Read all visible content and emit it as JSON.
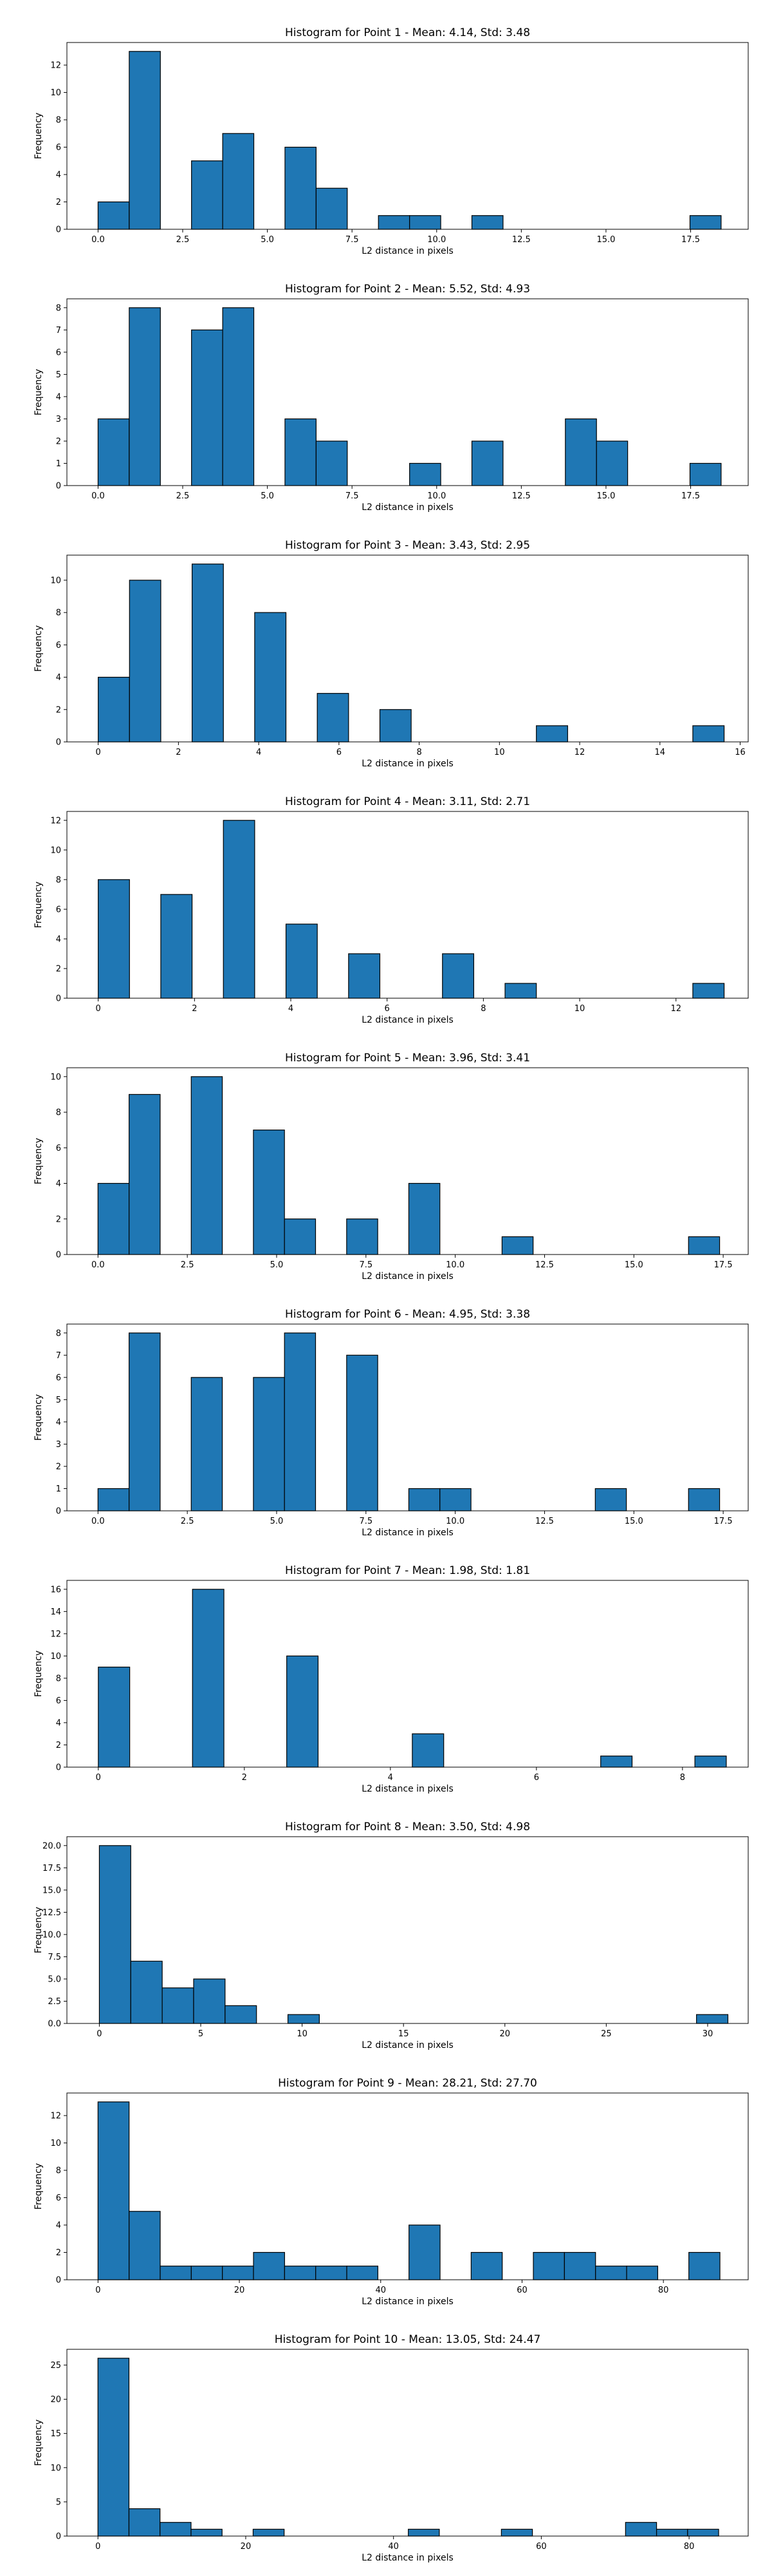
{
  "chart_data": [
    {
      "type": "bar",
      "title": "Histogram for Point 1 - Mean: 4.14, Std: 3.48",
      "xlabel": "L2 distance in pixels",
      "ylabel": "Frequency",
      "xlim": [
        -0.92,
        19.2
      ],
      "ylim": [
        0,
        13.65
      ],
      "xticks": [
        0.0,
        2.5,
        5.0,
        7.5,
        10.0,
        12.5,
        15.0,
        17.5
      ],
      "xtick_labels": [
        "0.0",
        "2.5",
        "5.0",
        "7.5",
        "10.0",
        "12.5",
        "15.0",
        "17.5"
      ],
      "yticks": [
        0,
        2,
        4,
        6,
        8,
        10,
        12
      ],
      "bin_edges": [
        0.0,
        0.92,
        1.84,
        2.76,
        3.68,
        4.6,
        5.52,
        6.44,
        7.36,
        8.28,
        9.2,
        10.12,
        11.04,
        11.96,
        12.88,
        13.8,
        14.72,
        15.64,
        16.56,
        17.48,
        18.4
      ],
      "counts": [
        2,
        13,
        0,
        5,
        7,
        0,
        6,
        3,
        0,
        1,
        1,
        0,
        1,
        0,
        0,
        0,
        0,
        0,
        0,
        1
      ]
    },
    {
      "type": "bar",
      "title": "Histogram for Point 2 - Mean: 5.52, Std: 4.93",
      "xlabel": "L2 distance in pixels",
      "ylabel": "Frequency",
      "xlim": [
        -0.92,
        19.2
      ],
      "ylim": [
        0,
        8.4
      ],
      "xticks": [
        0.0,
        2.5,
        5.0,
        7.5,
        10.0,
        12.5,
        15.0,
        17.5
      ],
      "xtick_labels": [
        "0.0",
        "2.5",
        "5.0",
        "7.5",
        "10.0",
        "12.5",
        "15.0",
        "17.5"
      ],
      "yticks": [
        0,
        1,
        2,
        3,
        4,
        5,
        6,
        7,
        8
      ],
      "bin_edges": [
        0.0,
        0.92,
        1.84,
        2.76,
        3.68,
        4.6,
        5.52,
        6.44,
        7.36,
        8.28,
        9.2,
        10.12,
        11.04,
        11.96,
        12.88,
        13.8,
        14.72,
        15.64,
        16.56,
        17.48,
        18.4
      ],
      "counts": [
        3,
        8,
        0,
        7,
        8,
        0,
        3,
        2,
        0,
        0,
        1,
        0,
        2,
        0,
        0,
        3,
        2,
        0,
        0,
        1
      ]
    },
    {
      "type": "bar",
      "title": "Histogram for Point 3 - Mean: 3.43, Std: 2.95",
      "xlabel": "L2 distance in pixels",
      "ylabel": "Frequency",
      "xlim": [
        -0.78,
        16.2
      ],
      "ylim": [
        0,
        11.55
      ],
      "xticks": [
        0,
        2,
        4,
        6,
        8,
        10,
        12,
        14,
        16
      ],
      "xtick_labels": [
        "0",
        "2",
        "4",
        "6",
        "8",
        "10",
        "12",
        "14",
        "16"
      ],
      "yticks": [
        0,
        2,
        4,
        6,
        8,
        10
      ],
      "bin_edges": [
        0.0,
        0.78,
        1.56,
        2.34,
        3.12,
        3.9,
        4.68,
        5.46,
        6.24,
        7.02,
        7.8,
        8.58,
        9.36,
        10.14,
        10.92,
        11.7,
        12.48,
        13.26,
        14.04,
        14.82,
        15.6
      ],
      "counts": [
        4,
        10,
        0,
        11,
        0,
        8,
        0,
        3,
        0,
        2,
        0,
        0,
        0,
        0,
        1,
        0,
        0,
        0,
        0,
        1
      ]
    },
    {
      "type": "bar",
      "title": "Histogram for Point 4 - Mean: 3.11, Std: 2.71",
      "xlabel": "L2 distance in pixels",
      "ylabel": "Frequency",
      "xlim": [
        -0.65,
        13.5
      ],
      "ylim": [
        0,
        12.6
      ],
      "xticks": [
        0,
        2,
        4,
        6,
        8,
        10,
        12
      ],
      "xtick_labels": [
        "0",
        "2",
        "4",
        "6",
        "8",
        "10",
        "12"
      ],
      "yticks": [
        0,
        2,
        4,
        6,
        8,
        10,
        12
      ],
      "bin_edges": [
        0.0,
        0.65,
        1.3,
        1.95,
        2.6,
        3.25,
        3.9,
        4.55,
        5.2,
        5.85,
        6.5,
        7.15,
        7.8,
        8.45,
        9.1,
        9.75,
        10.4,
        11.05,
        11.7,
        12.35,
        13.0
      ],
      "counts": [
        8,
        0,
        7,
        0,
        12,
        0,
        5,
        0,
        3,
        0,
        0,
        3,
        0,
        1,
        0,
        0,
        0,
        0,
        0,
        1
      ]
    },
    {
      "type": "bar",
      "title": "Histogram for Point 5 - Mean: 3.96, Std: 3.41",
      "xlabel": "L2 distance in pixels",
      "ylabel": "Frequency",
      "xlim": [
        -0.87,
        18.2
      ],
      "ylim": [
        0,
        10.5
      ],
      "xticks": [
        0.0,
        2.5,
        5.0,
        7.5,
        10.0,
        12.5,
        15.0,
        17.5
      ],
      "xtick_labels": [
        "0.0",
        "2.5",
        "5.0",
        "7.5",
        "10.0",
        "12.5",
        "15.0",
        "17.5"
      ],
      "yticks": [
        0,
        2,
        4,
        6,
        8,
        10
      ],
      "bin_edges": [
        0.0,
        0.87,
        1.74,
        2.61,
        3.48,
        4.35,
        5.22,
        6.09,
        6.96,
        7.83,
        8.7,
        9.57,
        10.44,
        11.31,
        12.18,
        13.05,
        13.92,
        14.79,
        15.66,
        16.53,
        17.4
      ],
      "counts": [
        4,
        9,
        0,
        10,
        0,
        7,
        2,
        0,
        2,
        0,
        4,
        0,
        0,
        1,
        0,
        0,
        0,
        0,
        0,
        1
      ]
    },
    {
      "type": "bar",
      "title": "Histogram for Point 6 - Mean: 4.95, Std: 3.38",
      "xlabel": "L2 distance in pixels",
      "ylabel": "Frequency",
      "xlim": [
        -0.87,
        18.2
      ],
      "ylim": [
        0,
        8.4
      ],
      "xticks": [
        0.0,
        2.5,
        5.0,
        7.5,
        10.0,
        12.5,
        15.0,
        17.5
      ],
      "xtick_labels": [
        "0.0",
        "2.5",
        "5.0",
        "7.5",
        "10.0",
        "12.5",
        "15.0",
        "17.5"
      ],
      "yticks": [
        0,
        1,
        2,
        3,
        4,
        5,
        6,
        7,
        8
      ],
      "bin_edges": [
        0.0,
        0.87,
        1.74,
        2.61,
        3.48,
        4.35,
        5.22,
        6.09,
        6.96,
        7.83,
        8.7,
        9.57,
        10.44,
        11.31,
        12.18,
        13.05,
        13.92,
        14.79,
        15.66,
        16.53,
        17.4
      ],
      "counts": [
        1,
        8,
        0,
        6,
        0,
        6,
        8,
        0,
        7,
        0,
        1,
        1,
        0,
        0,
        0,
        0,
        1,
        0,
        0,
        1
      ]
    },
    {
      "type": "bar",
      "title": "Histogram for Point 7 - Mean: 1.98, Std: 1.81",
      "xlabel": "L2 distance in pixels",
      "ylabel": "Frequency",
      "xlim": [
        -0.43,
        8.9
      ],
      "ylim": [
        0,
        16.8
      ],
      "xticks": [
        0,
        2,
        4,
        6,
        8
      ],
      "xtick_labels": [
        "0",
        "2",
        "4",
        "6",
        "8"
      ],
      "yticks": [
        0,
        2,
        4,
        6,
        8,
        10,
        12,
        14,
        16
      ],
      "bin_edges": [
        0.0,
        0.43,
        0.86,
        1.29,
        1.72,
        2.15,
        2.58,
        3.01,
        3.44,
        3.87,
        4.3,
        4.73,
        5.16,
        5.59,
        6.02,
        6.45,
        6.88,
        7.31,
        7.74,
        8.17,
        8.6
      ],
      "counts": [
        9,
        0,
        0,
        16,
        0,
        0,
        10,
        0,
        0,
        0,
        3,
        0,
        0,
        0,
        0,
        0,
        1,
        0,
        0,
        1
      ]
    },
    {
      "type": "bar",
      "title": "Histogram for Point 8 - Mean: 3.50, Std: 4.98",
      "xlabel": "L2 distance in pixels",
      "ylabel": "Frequency",
      "xlim": [
        -1.6,
        32.0
      ],
      "ylim": [
        0,
        21.0
      ],
      "xticks": [
        0,
        5,
        10,
        15,
        20,
        25,
        30
      ],
      "xtick_labels": [
        "0",
        "5",
        "10",
        "15",
        "20",
        "25",
        "30"
      ],
      "yticks": [
        0,
        2.5,
        5.0,
        7.5,
        10.0,
        12.5,
        15.0,
        17.5,
        20.0
      ],
      "ytick_labels": [
        "0.0",
        "2.5",
        "5.0",
        "7.5",
        "10.0",
        "12.5",
        "15.0",
        "17.5",
        "20.0"
      ],
      "bin_edges": [
        0.0,
        1.55,
        3.1,
        4.65,
        6.2,
        7.75,
        9.3,
        10.85,
        12.4,
        13.95,
        15.5,
        17.05,
        18.6,
        20.15,
        21.7,
        23.25,
        24.8,
        26.35,
        27.9,
        29.45,
        31.0
      ],
      "counts": [
        20,
        7,
        4,
        5,
        2,
        0,
        1,
        0,
        0,
        0,
        0,
        0,
        0,
        0,
        0,
        0,
        0,
        0,
        0,
        1
      ]
    },
    {
      "type": "bar",
      "title": "Histogram for Point 9 - Mean: 28.21, Std: 27.70",
      "xlabel": "L2 distance in pixels",
      "ylabel": "Frequency",
      "xlim": [
        -4.4,
        92.0
      ],
      "ylim": [
        0,
        13.65
      ],
      "xticks": [
        0,
        20,
        40,
        60,
        80
      ],
      "xtick_labels": [
        "0",
        "20",
        "40",
        "60",
        "80"
      ],
      "yticks": [
        0,
        2,
        4,
        6,
        8,
        10,
        12
      ],
      "bin_edges": [
        0.0,
        4.4,
        8.8,
        13.2,
        17.6,
        22.0,
        26.4,
        30.8,
        35.2,
        39.6,
        44.0,
        48.4,
        52.8,
        57.2,
        61.6,
        66.0,
        70.4,
        74.8,
        79.2,
        83.6,
        88.0
      ],
      "counts": [
        13,
        5,
        1,
        1,
        1,
        2,
        1,
        1,
        1,
        0,
        4,
        0,
        2,
        0,
        2,
        2,
        1,
        1,
        0,
        2
      ]
    },
    {
      "type": "bar",
      "title": "Histogram for Point 10 - Mean: 13.05, Std: 24.47",
      "xlabel": "L2 distance in pixels",
      "ylabel": "Frequency",
      "xlim": [
        -4.2,
        88.0
      ],
      "ylim": [
        0,
        27.3
      ],
      "xticks": [
        0,
        20,
        40,
        60,
        80
      ],
      "xtick_labels": [
        "0",
        "20",
        "40",
        "60",
        "80"
      ],
      "yticks": [
        0,
        5,
        10,
        15,
        20,
        25
      ],
      "bin_edges": [
        0.0,
        4.2,
        8.4,
        12.6,
        16.8,
        21.0,
        25.2,
        29.4,
        33.6,
        37.8,
        42.0,
        46.2,
        50.4,
        54.6,
        58.8,
        63.0,
        67.2,
        71.4,
        75.6,
        79.8,
        84.0
      ],
      "counts": [
        26,
        4,
        2,
        1,
        0,
        1,
        0,
        0,
        0,
        0,
        1,
        0,
        0,
        1,
        0,
        0,
        0,
        2,
        1,
        1
      ]
    }
  ],
  "style": {
    "bar_color": "#1f77b4",
    "edge_color": "#000000",
    "axis_color": "#000000",
    "text_color": "#000000"
  }
}
